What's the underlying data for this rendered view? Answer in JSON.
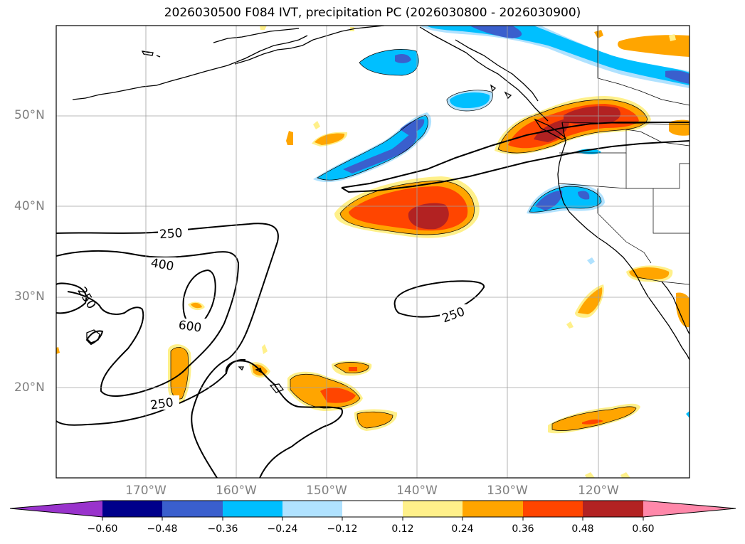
{
  "title": "2026030500 F084 IVT, precipitation PC (2026030800 - 2026030900)",
  "lat_labels": [
    "50°N",
    "40°N",
    "30°N",
    "20°N"
  ],
  "lon_labels": [
    "170°W",
    "160°W",
    "150°W",
    "140°W",
    "130°W",
    "120°W"
  ],
  "contour_labels": {
    "c250_a": "250",
    "c400": "400",
    "c250_left": "250",
    "c600": "600",
    "c250_b": "250",
    "c250_c": "250"
  },
  "colorbar": {
    "ticks": [
      "−0.60",
      "−0.48",
      "−0.36",
      "−0.24",
      "−0.12",
      "0.12",
      "0.24",
      "0.36",
      "0.48",
      "0.60"
    ],
    "colors": {
      "below": "#9933cc",
      "b1": "#00008b",
      "b2": "#3a5fcd",
      "b3": "#00bfff",
      "b4": "#b0e2ff",
      "b5": "#ffffff",
      "b6": "#fff08a",
      "b7": "#ffa500",
      "b8": "#ff4500",
      "b9": "#b22222",
      "above": "#ff88aa"
    }
  }
}
